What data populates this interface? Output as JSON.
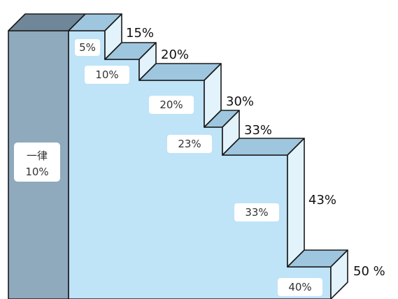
{
  "diagram": {
    "flat": {
      "line1": "一律",
      "line2": "10%"
    },
    "steps": [
      {
        "inner": "5%",
        "outer": "15%"
      },
      {
        "inner": "10%",
        "outer": "20%"
      },
      {
        "inner": "20%",
        "outer": "30%"
      },
      {
        "inner": "23%",
        "outer": "33%"
      },
      {
        "inner": "33%",
        "outer": "43%"
      },
      {
        "inner": "40%",
        "outer": "50 %"
      }
    ]
  },
  "colors": {
    "flat_front": "#8fa9bd",
    "flat_top": "#6f8799",
    "stair_front": "#bfe3f7",
    "stair_top": "#9fc6df",
    "stair_side": "#e2f3fc",
    "badge_bg": "#ffffff"
  }
}
